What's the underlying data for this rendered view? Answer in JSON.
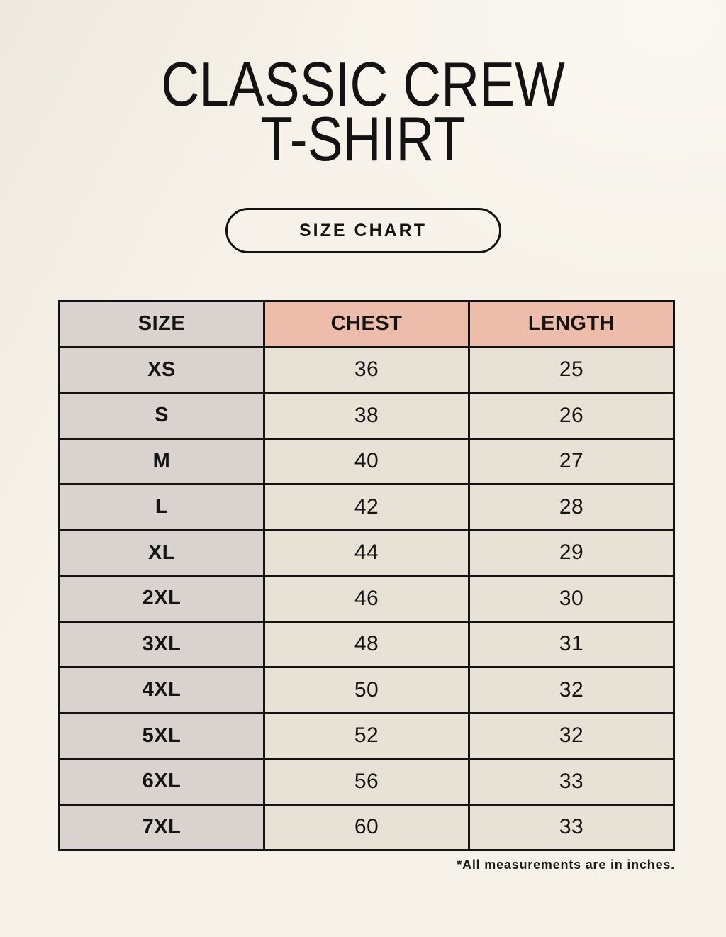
{
  "header": {
    "title_line1": "CLASSIC CREW",
    "title_line2": "T-SHIRT",
    "button_label": "SIZE CHART"
  },
  "footer": {
    "note": "*All measurements are in inches."
  },
  "colors": {
    "page_background": "#f6f2e9",
    "size_column_fill": "#d9d2ce",
    "accent_header_fill": "#eebcab",
    "value_cell_fill": "#e8e2d6",
    "table_border": "#121212",
    "text": "#131313"
  },
  "chart_data": {
    "type": "table",
    "title": "CLASSIC CREW T-SHIRT",
    "subtitle": "SIZE CHART",
    "columns": [
      "SIZE",
      "CHEST",
      "LENGTH"
    ],
    "rows": [
      [
        "XS",
        "36",
        "25"
      ],
      [
        "S",
        "38",
        "26"
      ],
      [
        "M",
        "40",
        "27"
      ],
      [
        "L",
        "42",
        "28"
      ],
      [
        "XL",
        "44",
        "29"
      ],
      [
        "2XL",
        "46",
        "30"
      ],
      [
        "3XL",
        "48",
        "31"
      ],
      [
        "4XL",
        "50",
        "32"
      ],
      [
        "5XL",
        "52",
        "32"
      ],
      [
        "6XL",
        "56",
        "33"
      ],
      [
        "7XL",
        "60",
        "33"
      ]
    ],
    "units": "inches",
    "note": "*All measurements are in inches."
  }
}
